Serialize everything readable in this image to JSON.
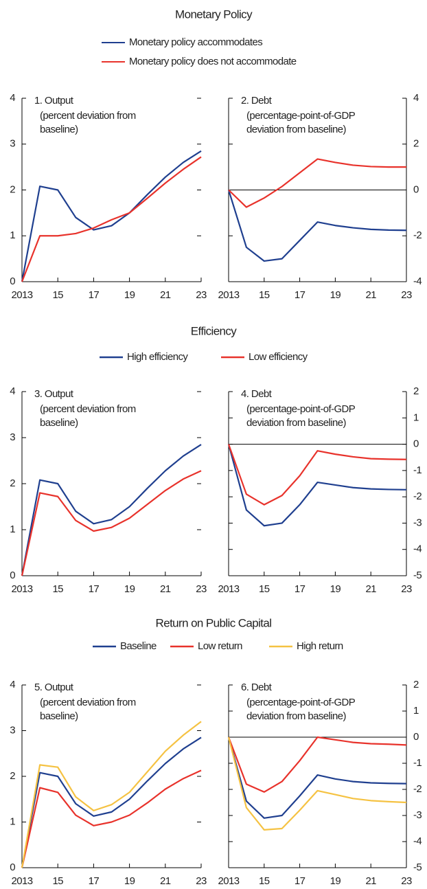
{
  "sections": [
    {
      "title": "Monetary Policy"
    },
    {
      "title": "Efficiency"
    },
    {
      "title": "Return on Public Capital"
    }
  ],
  "chart_data": [
    {
      "type": "line",
      "title": "1. Output",
      "subtitle": [
        "(percent deviation from",
        "baseline)"
      ],
      "y_side": "left",
      "x": [
        2013,
        2014,
        2015,
        2016,
        2017,
        2018,
        2019,
        2020,
        2021,
        2022,
        2023
      ],
      "xlim": [
        2013,
        2023
      ],
      "xticks": [
        {
          "value": 2013,
          "label": "2013"
        },
        {
          "value": 2015,
          "label": "15"
        },
        {
          "value": 2017,
          "label": "17"
        },
        {
          "value": 2019,
          "label": "19"
        },
        {
          "value": 2021,
          "label": "21"
        },
        {
          "value": 2023,
          "label": "23"
        }
      ],
      "ylim": [
        0,
        4
      ],
      "yticks": [
        0,
        1,
        2,
        3,
        4
      ],
      "series": [
        {
          "name": "Monetary policy accommodates",
          "color": "#1f3f8f",
          "values": [
            0,
            2.08,
            2.0,
            1.4,
            1.13,
            1.22,
            1.5,
            1.9,
            2.28,
            2.6,
            2.85
          ]
        },
        {
          "name": "Monetary policy does not accommodate",
          "color": "#e8322b",
          "values": [
            0,
            1.0,
            1.0,
            1.05,
            1.17,
            1.35,
            1.5,
            1.82,
            2.15,
            2.45,
            2.72
          ]
        }
      ]
    },
    {
      "type": "line",
      "title": "2. Debt",
      "subtitle": [
        "(percentage-point-of-GDP",
        "deviation from baseline)"
      ],
      "y_side": "right",
      "x": [
        2013,
        2014,
        2015,
        2016,
        2017,
        2018,
        2019,
        2020,
        2021,
        2022,
        2023
      ],
      "xlim": [
        2013,
        2023
      ],
      "xticks": [
        {
          "value": 2013,
          "label": "2013"
        },
        {
          "value": 2015,
          "label": "15"
        },
        {
          "value": 2017,
          "label": "17"
        },
        {
          "value": 2019,
          "label": "19"
        },
        {
          "value": 2021,
          "label": "21"
        },
        {
          "value": 2023,
          "label": "23"
        }
      ],
      "ylim": [
        -4,
        4
      ],
      "yticks": [
        -4,
        -2,
        0,
        2,
        4
      ],
      "series": [
        {
          "name": "Monetary policy accommodates",
          "color": "#1f3f8f",
          "values": [
            0,
            -2.5,
            -3.1,
            -3.0,
            -2.2,
            -1.4,
            -1.55,
            -1.65,
            -1.72,
            -1.75,
            -1.76
          ]
        },
        {
          "name": "Monetary policy does not accommodate",
          "color": "#e8322b",
          "values": [
            0,
            -0.75,
            -0.35,
            0.15,
            0.75,
            1.35,
            1.2,
            1.08,
            1.02,
            1.0,
            1.0
          ]
        }
      ]
    },
    {
      "type": "line",
      "title": "3. Output",
      "subtitle": [
        "(percent deviation from",
        "baseline)"
      ],
      "y_side": "left",
      "x": [
        2013,
        2014,
        2015,
        2016,
        2017,
        2018,
        2019,
        2020,
        2021,
        2022,
        2023
      ],
      "xlim": [
        2013,
        2023
      ],
      "xticks": [
        {
          "value": 2013,
          "label": "2013"
        },
        {
          "value": 2015,
          "label": "15"
        },
        {
          "value": 2017,
          "label": "17"
        },
        {
          "value": 2019,
          "label": "19"
        },
        {
          "value": 2021,
          "label": "21"
        },
        {
          "value": 2023,
          "label": "23"
        }
      ],
      "ylim": [
        0,
        4
      ],
      "yticks": [
        0,
        1,
        2,
        3,
        4
      ],
      "series": [
        {
          "name": "High efficiency",
          "color": "#1f3f8f",
          "values": [
            0,
            2.08,
            2.0,
            1.4,
            1.13,
            1.22,
            1.5,
            1.9,
            2.28,
            2.6,
            2.85
          ]
        },
        {
          "name": "Low efficiency",
          "color": "#e8322b",
          "values": [
            0,
            1.8,
            1.72,
            1.2,
            0.97,
            1.05,
            1.25,
            1.55,
            1.85,
            2.1,
            2.28
          ]
        }
      ]
    },
    {
      "type": "line",
      "title": "4. Debt",
      "subtitle": [
        "(percentage-point-of-GDP",
        "deviation from baseline)"
      ],
      "y_side": "right",
      "x": [
        2013,
        2014,
        2015,
        2016,
        2017,
        2018,
        2019,
        2020,
        2021,
        2022,
        2023
      ],
      "xlim": [
        2013,
        2023
      ],
      "xticks": [
        {
          "value": 2013,
          "label": "2013"
        },
        {
          "value": 2015,
          "label": "15"
        },
        {
          "value": 2017,
          "label": "17"
        },
        {
          "value": 2019,
          "label": "19"
        },
        {
          "value": 2021,
          "label": "21"
        },
        {
          "value": 2023,
          "label": "23"
        }
      ],
      "ylim": [
        -5,
        2
      ],
      "yticks": [
        -5,
        -4,
        -3,
        -2,
        -1,
        0,
        1,
        2
      ],
      "series": [
        {
          "name": "High efficiency",
          "color": "#1f3f8f",
          "values": [
            0,
            -2.5,
            -3.1,
            -3.0,
            -2.3,
            -1.45,
            -1.55,
            -1.65,
            -1.7,
            -1.72,
            -1.73
          ]
        },
        {
          "name": "Low efficiency",
          "color": "#e8322b",
          "values": [
            0,
            -1.9,
            -2.3,
            -1.95,
            -1.2,
            -0.25,
            -0.38,
            -0.48,
            -0.55,
            -0.57,
            -0.58
          ]
        }
      ]
    },
    {
      "type": "line",
      "title": "5. Output",
      "subtitle": [
        "(percent deviation from",
        "baseline)"
      ],
      "y_side": "left",
      "x": [
        2013,
        2014,
        2015,
        2016,
        2017,
        2018,
        2019,
        2020,
        2021,
        2022,
        2023
      ],
      "xlim": [
        2013,
        2023
      ],
      "xticks": [
        {
          "value": 2013,
          "label": "2013"
        },
        {
          "value": 2015,
          "label": "15"
        },
        {
          "value": 2017,
          "label": "17"
        },
        {
          "value": 2019,
          "label": "19"
        },
        {
          "value": 2021,
          "label": "21"
        },
        {
          "value": 2023,
          "label": "23"
        }
      ],
      "ylim": [
        0,
        4
      ],
      "yticks": [
        0,
        1,
        2,
        3,
        4
      ],
      "series": [
        {
          "name": "Baseline",
          "color": "#1f3f8f",
          "values": [
            0,
            2.08,
            2.0,
            1.4,
            1.13,
            1.22,
            1.5,
            1.9,
            2.28,
            2.6,
            2.85
          ]
        },
        {
          "name": "Low return",
          "color": "#e8322b",
          "values": [
            0,
            1.75,
            1.65,
            1.15,
            0.92,
            1.0,
            1.15,
            1.42,
            1.72,
            1.95,
            2.13
          ]
        },
        {
          "name": "High return",
          "color": "#f5c242",
          "values": [
            0,
            2.25,
            2.2,
            1.55,
            1.25,
            1.38,
            1.65,
            2.1,
            2.55,
            2.9,
            3.2
          ]
        }
      ]
    },
    {
      "type": "line",
      "title": "6. Debt",
      "subtitle": [
        "(percentage-point-of-GDP",
        "deviation from baseline)"
      ],
      "y_side": "right",
      "x": [
        2013,
        2014,
        2015,
        2016,
        2017,
        2018,
        2019,
        2020,
        2021,
        2022,
        2023
      ],
      "xlim": [
        2013,
        2023
      ],
      "xticks": [
        {
          "value": 2013,
          "label": "2013"
        },
        {
          "value": 2015,
          "label": "15"
        },
        {
          "value": 2017,
          "label": "17"
        },
        {
          "value": 2019,
          "label": "19"
        },
        {
          "value": 2021,
          "label": "21"
        },
        {
          "value": 2023,
          "label": "23"
        }
      ],
      "ylim": [
        -5,
        2
      ],
      "yticks": [
        -5,
        -4,
        -3,
        -2,
        -1,
        0,
        1,
        2
      ],
      "series": [
        {
          "name": "Baseline",
          "color": "#1f3f8f",
          "values": [
            0,
            -2.45,
            -3.1,
            -3.0,
            -2.25,
            -1.45,
            -1.6,
            -1.7,
            -1.75,
            -1.77,
            -1.78
          ]
        },
        {
          "name": "Low return",
          "color": "#e8322b",
          "values": [
            0,
            -1.8,
            -2.1,
            -1.7,
            -0.9,
            0,
            -0.1,
            -0.2,
            -0.25,
            -0.27,
            -0.3
          ]
        },
        {
          "name": "High return",
          "color": "#f5c242",
          "values": [
            0,
            -2.7,
            -3.55,
            -3.5,
            -2.8,
            -2.05,
            -2.2,
            -2.35,
            -2.43,
            -2.47,
            -2.5
          ]
        }
      ]
    }
  ]
}
